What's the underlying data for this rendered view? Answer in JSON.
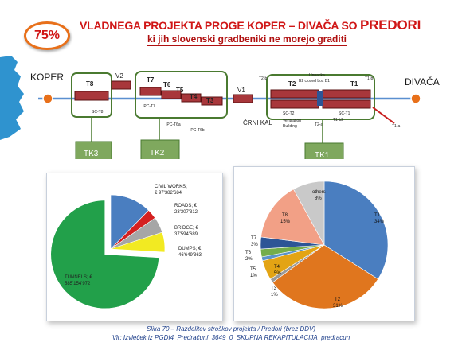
{
  "header": {
    "badge": "75%",
    "title_lead": "VLADNEGA PROJEKTA PROGE KOPER – DIVAČA SO ",
    "title_big": "PREDORI",
    "subtitle": "ki jih slovenski gradbeniki ne morejo graditi"
  },
  "diagram": {
    "koper": "KOPER",
    "divaca": "DIVAČA",
    "crni_kal": "ČRNI KAL",
    "v1": "V1",
    "v2": "V2",
    "t1": "T1",
    "t2": "T2",
    "t3": "T3",
    "t4": "T4",
    "t5": "T5",
    "t6": "T6",
    "t7": "T7",
    "t8": "T8",
    "sc_t8": "SC-T8",
    "ipc_t7": "IPC-T7",
    "ipc_t6a": "IPC-T6a",
    "ipc_t6b": "IPC-T6b",
    "sc_t2": "SC-T2",
    "sc_t1": "SC-T1",
    "t2_a": "T2-a",
    "t2_b": "T2-b",
    "t1_a": "T1-a",
    "t1_b": "T1-b",
    "t1_b2": "T1-b2",
    "unused_box": "Unnacka",
    "closed_box": "B2 closed box B1",
    "ventilation": "Ventilation",
    "building": "Building",
    "tk1": "TK1",
    "tk2": "TK2",
    "tk3": "TK3"
  },
  "pie1_labels": {
    "civil": "CIVIL WORKS;",
    "civil_v": "€ 97'382'684",
    "roads": "ROADS; €",
    "roads_v": "23'307'312",
    "bridge": "BRIDGE; €",
    "bridge_v": "37'594'689",
    "dumps": "DUMPS; €",
    "dumps_v": "46'649'363",
    "tunnels": "TUNNELS; €",
    "tunnels_v": "585'154'972"
  },
  "pie2_labels": {
    "t1": "T1",
    "t1_p": "34%",
    "t2": "T2",
    "t2_p": "31%",
    "t3": "T3",
    "t3_p": "1%",
    "t4": "T4",
    "t4_p": "5%",
    "t5": "T5",
    "t5_p": "1%",
    "t6": "T6",
    "t6_p": "2%",
    "t7": "T7",
    "t7_p": "3%",
    "t8": "T8",
    "t8_p": "15%",
    "others": "others",
    "others_p": "8%"
  },
  "caption": {
    "line1": "Slika 70 – Razdelitev stroškov projekta / Predori (brez DDV)",
    "line2": "Vir: Izvleček iz PGDI4_Predračuni\\ 3649_0_SKUPNA REKAPITULACIJA_predracun"
  },
  "chart_data": [
    {
      "type": "pie",
      "series": [
        {
          "values": [
            97382684,
            23307312,
            37594689,
            46649363,
            585154972
          ]
        }
      ],
      "categories": [
        "CIVIL WORKS",
        "ROADS",
        "BRIDGE",
        "DUMPS",
        "TUNNELS"
      ],
      "colors": [
        "#4a7ec0",
        "#d42020",
        "#a6a6a6",
        "#f2ea22",
        "#22a04a"
      ]
    },
    {
      "type": "pie",
      "series": [
        {
          "values": [
            34,
            31,
            1,
            5,
            1,
            2,
            3,
            15,
            8
          ]
        }
      ],
      "categories": [
        "T1",
        "T2",
        "T3",
        "T4",
        "T5",
        "T6",
        "T7",
        "T8",
        "others"
      ],
      "colors": [
        "#4a7ec0",
        "#e0761e",
        "#9a9a9a",
        "#e3a414",
        "#5b93c8",
        "#74ad4a",
        "#2d5596",
        "#f2a086",
        "#c9c9c9"
      ]
    }
  ]
}
